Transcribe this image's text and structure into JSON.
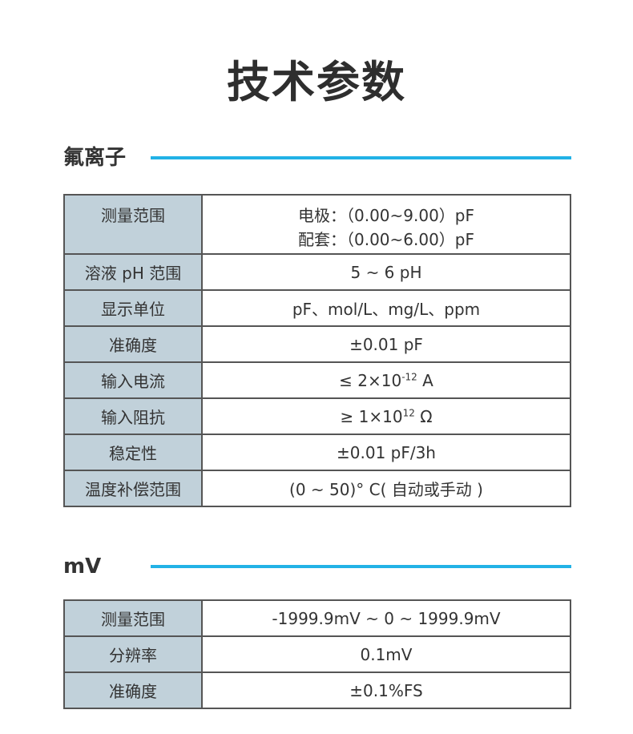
{
  "title": "技术参数",
  "colors": {
    "accent_line": "#22b2e6",
    "label_cell": "#c1d1da",
    "border": "#555555"
  },
  "sections": [
    {
      "name": "氟离子",
      "rows": [
        {
          "label": "测量范围",
          "lines": [
            "电极：（0.00~9.00）pF",
            "配套：（0.00~6.00）pF"
          ]
        },
        {
          "label": "溶液 pH 范围",
          "value": "5 ~ 6 pH"
        },
        {
          "label": "显示单位",
          "value": "pF、mol/L、mg/L、ppm"
        },
        {
          "label": "准确度",
          "value": "±0.01 pF"
        },
        {
          "label": "输入电流",
          "value": {
            "pre": "≤ 2×10",
            "sup": "-12",
            "post": " A"
          }
        },
        {
          "label": "输入阻抗",
          "value": {
            "pre": "≥ 1×10",
            "sup": "12",
            "post": " Ω"
          }
        },
        {
          "label": "稳定性",
          "value": "±0.01 pF/3h"
        },
        {
          "label": "温度补偿范围",
          "value": "(0 ~ 50)° C( 自动或手动 )"
        }
      ]
    },
    {
      "name": "mV",
      "rows": [
        {
          "label": "测量范围",
          "value": "-1999.9mV ~ 0 ~ 1999.9mV"
        },
        {
          "label": "分辨率",
          "value": "0.1mV"
        },
        {
          "label": "准确度",
          "value": "±0.1%FS"
        }
      ]
    }
  ]
}
